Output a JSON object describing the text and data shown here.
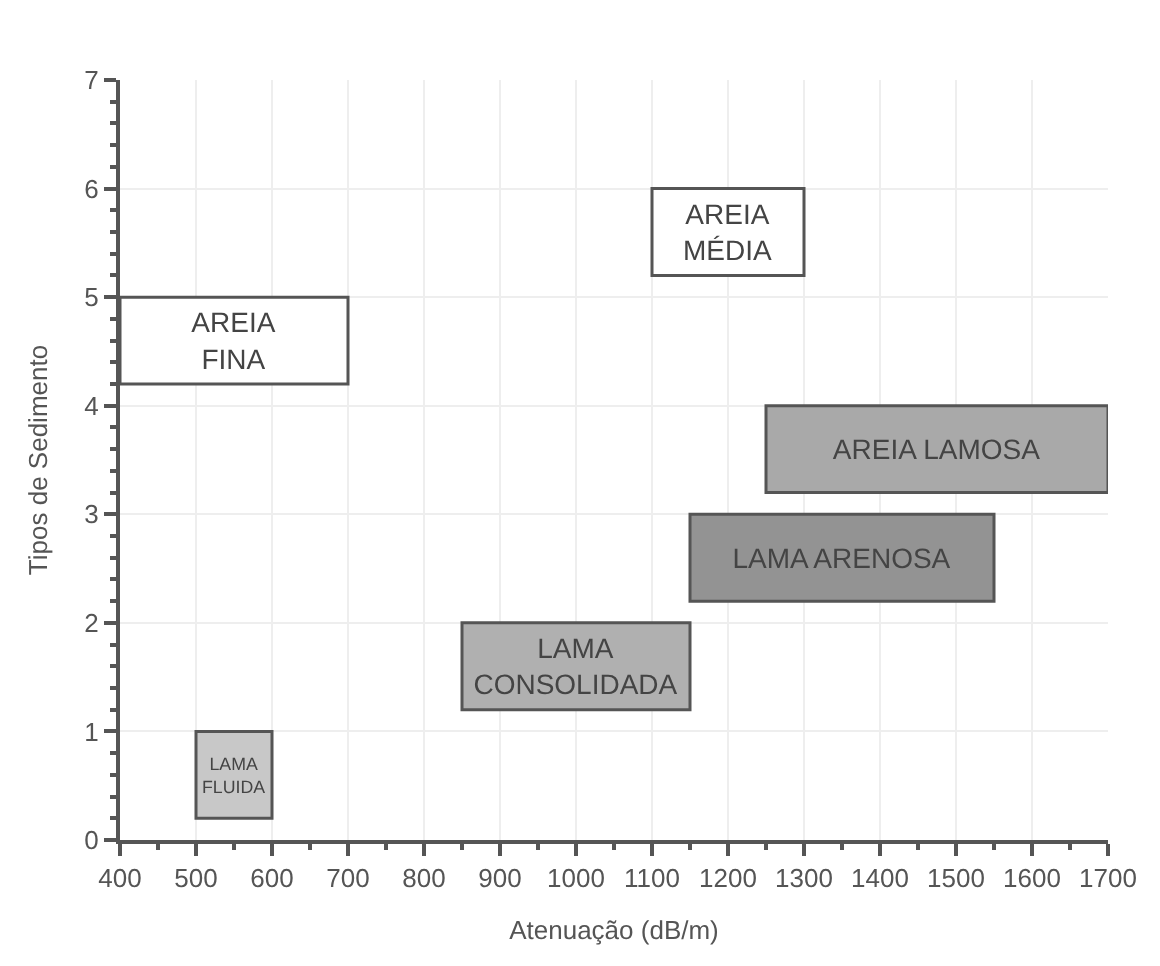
{
  "chart_data": {
    "type": "bar",
    "orientation": "horizontal",
    "xlabel": "Atenuação (dB/m)",
    "ylabel": "Tipos de Sedimento",
    "xlim": [
      400,
      1700
    ],
    "xticks": [
      400,
      500,
      600,
      700,
      800,
      900,
      1000,
      1100,
      1200,
      1300,
      1400,
      1500,
      1600,
      1700
    ],
    "ylim": [
      0,
      7
    ],
    "yticks": [
      0,
      1,
      2,
      3,
      4,
      5,
      6,
      7
    ],
    "grid": true,
    "legend": false,
    "series": [
      {
        "name": "LAMA\nFLUIDA",
        "color": "#c8c8c8",
        "x": [
          0.6
        ],
        "base": [
          500
        ],
        "values": [
          100
        ]
      },
      {
        "name": "LAMA\nCONSOLIDADA",
        "color": "#b0b0b0",
        "x": [
          1.6
        ],
        "base": [
          850
        ],
        "values": [
          300
        ]
      },
      {
        "name": "LAMA ARENOSA",
        "color": "#939393",
        "x": [
          2.6
        ],
        "base": [
          1150
        ],
        "values": [
          400
        ]
      },
      {
        "name": "AREIA LAMOSA",
        "color": "#a9a9a9",
        "x": [
          3.6
        ],
        "base": [
          1250
        ],
        "values": [
          450
        ]
      },
      {
        "name": "AREIA\nFINA",
        "color": "#ffffff",
        "x": [
          4.6
        ],
        "base": [
          400
        ],
        "values": [
          300
        ]
      },
      {
        "name": "AREIA\nMÉDIA",
        "color": "#ffffff",
        "x": [
          5.6
        ],
        "base": [
          1100
        ],
        "values": [
          200
        ]
      }
    ]
  }
}
